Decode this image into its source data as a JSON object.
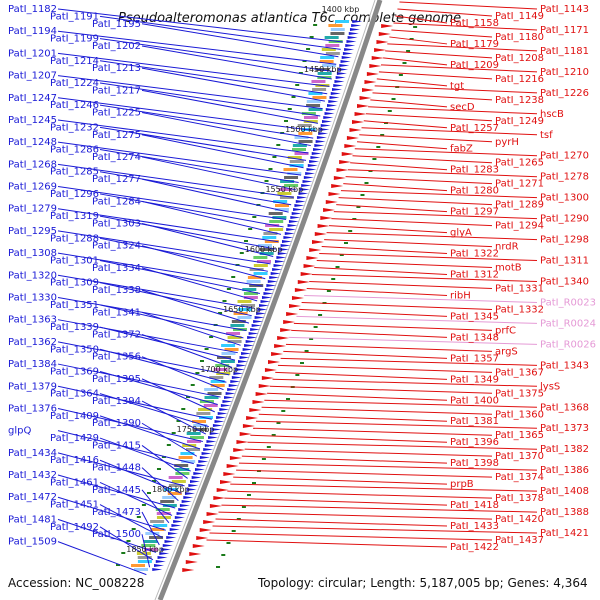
{
  "title": "Pseudoalteromonas atlantica T6c, complete genome",
  "footer": {
    "accession": "Accession: NC_008228",
    "topology": "Topology: circular; Length: 5,187,005 bp; Genes: 4,364"
  },
  "colors": {
    "forward": "#e01010",
    "reverse": "#1a1ad6",
    "rna": "#e59ad6",
    "backbone": "#777777"
  },
  "kbp_marks": [
    "1400 kbp",
    "1450 kbp",
    "1500 kbp",
    "1550 kbp",
    "1600 kbp",
    "1650 kbp",
    "1700 kbp",
    "1750 kbp",
    "1800 kbp",
    "1850 kbp"
  ],
  "left_labels": [
    "PatI_1182",
    "PatI_1191",
    "PatI_1195",
    "PatI_1194",
    "PatI_1199",
    "PatI_1202",
    "PatI_1201",
    "PatI_1214",
    "PatI_1213",
    "PatI_1207",
    "PatI_1224",
    "PatI_1217",
    "PatI_1247",
    "PatI_1246",
    "PatI_1225",
    "PatI_1245",
    "PatI_1232",
    "PatI_1275",
    "PatI_1248",
    "PatI_1286",
    "PatI_1274",
    "PatI_1268",
    "PatI_1285",
    "PatI_1277",
    "PatI_1269",
    "PatI_1296",
    "PatI_1284",
    "PatI_1279",
    "PatI_1319",
    "PatI_1303",
    "PatI_1295",
    "PatI_1288",
    "PatI_1324",
    "PatI_1308",
    "PatI_1301",
    "PatI_1334",
    "PatI_1320",
    "PatI_1309",
    "PatI_1338",
    "PatI_1330",
    "PatI_1351",
    "PatI_1341",
    "PatI_1363",
    "PatI_1339",
    "PatI_1372",
    "PatI_1362",
    "PatI_1350",
    "PatI_1356",
    "PatI_1384",
    "PatI_1369",
    "PatI_1395",
    "PatI_1379",
    "PatI_1364",
    "PatI_1394",
    "PatI_1376",
    "PatI_1409",
    "PatI_1390",
    "glpQ",
    "PatI_1429",
    "PatI_1415",
    "PatI_1434",
    "PatI_1416",
    "PatI_1448",
    "PatI_1432",
    "PatI_1461",
    "PatI_1445",
    "PatI_1472",
    "PatI_1451",
    "PatI_1473",
    "PatI_1481",
    "PatI_1492",
    "PatI_1500",
    "PatI_1509"
  ],
  "right_labels": [
    "PatI_1143",
    "PatI_1149",
    "PatI_1158",
    "PatI_1171",
    "PatI_1180",
    "PatI_1179",
    "PatI_1181",
    "PatI_1208",
    "PatI_1209",
    "PatI_1210",
    "PatI_1216",
    "tgt",
    "PatI_1226",
    "PatI_1238",
    "secD",
    "hscB",
    "PatI_1249",
    "PatI_1257",
    "tsf",
    "pyrH",
    "fabZ",
    "PatI_1270",
    "PatI_1265",
    "PatI_1283",
    "PatI_1278",
    "PatI_1271",
    "PatI_1280",
    "PatI_1300",
    "PatI_1289",
    "PatI_1297",
    "PatI_1290",
    "PatI_1294",
    "glyA",
    "PatI_1298",
    "nrdR",
    "PatI_1322",
    "PatI_1311",
    "motB",
    "PatI_1312",
    "PatI_1340",
    "PatI_1331",
    "ribH",
    "PatI_R0023",
    "PatI_1332",
    "PatI_1345",
    "PatI_R0024",
    "prfC",
    "PatI_1348",
    "PatI_R0026",
    "argS",
    "PatI_1357",
    "PatI_1343",
    "PatI_1367",
    "PatI_1349",
    "lysS",
    "PatI_1375",
    "PatI_1400",
    "PatI_1368",
    "PatI_1360",
    "PatI_1381",
    "PatI_1373",
    "PatI_1365",
    "PatI_1396",
    "PatI_1382",
    "PatI_1370",
    "PatI_1398",
    "PatI_1386",
    "PatI_1374",
    "prpB",
    "PatI_1408",
    "PatI_1378",
    "PatI_1418",
    "PatI_1388",
    "PatI_1420",
    "PatI_1433",
    "PatI_1421",
    "PatI_1437",
    "PatI_1422"
  ],
  "pink_labels": [
    "PatI_R0023",
    "PatI_R0024",
    "PatI_R0026"
  ]
}
